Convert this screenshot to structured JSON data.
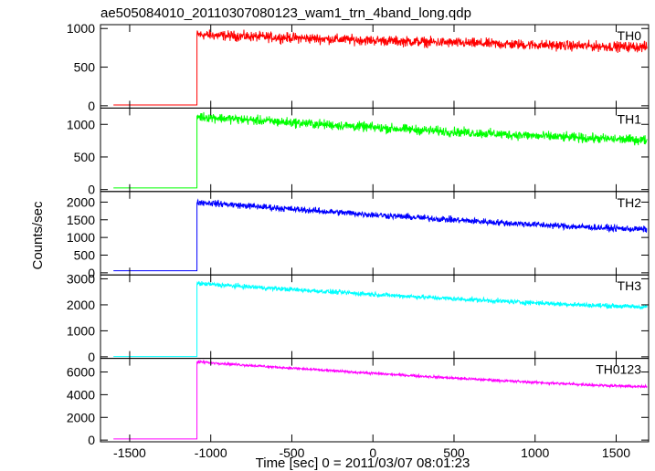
{
  "title": "ae505084010_20110307080123_wam1_trn_4band_long.qdp",
  "xlabel": "Time [sec] 0 = 2011/03/07 08:01:23",
  "ylabel": "Counts/sec",
  "x_ticks": [
    -1500,
    -1000,
    -500,
    0,
    500,
    1000,
    1500
  ],
  "chart_data": [
    {
      "type": "line",
      "series": [
        {
          "name": "TH0",
          "color": "#ff0000",
          "pre_level": 10,
          "pre_x_range": [
            -1600,
            -1090
          ],
          "post_start": 920,
          "post_end": 760,
          "noise": 40,
          "step_x": -1085
        }
      ],
      "xlim": [
        -1680,
        1700
      ],
      "ylim": [
        -30,
        1050
      ],
      "y_ticks": [
        0,
        500,
        1000
      ],
      "grid": false
    },
    {
      "type": "line",
      "series": [
        {
          "name": "TH1",
          "color": "#00ff00",
          "pre_level": 25,
          "pre_x_range": [
            -1600,
            -1090
          ],
          "post_start": 1120,
          "post_end": 760,
          "noise": 45,
          "step_x": -1085
        }
      ],
      "xlim": [
        -1680,
        1700
      ],
      "ylim": [
        -30,
        1250
      ],
      "y_ticks": [
        0,
        500,
        1000
      ],
      "grid": false
    },
    {
      "type": "line",
      "series": [
        {
          "name": "TH2",
          "color": "#0000ff",
          "pre_level": 60,
          "pre_x_range": [
            -1600,
            -1090
          ],
          "post_start": 2000,
          "post_end": 1230,
          "noise": 55,
          "step_x": -1085
        }
      ],
      "xlim": [
        -1680,
        1700
      ],
      "ylim": [
        -60,
        2300
      ],
      "y_ticks": [
        0,
        500,
        1000,
        1500,
        2000
      ],
      "grid": false
    },
    {
      "type": "line",
      "series": [
        {
          "name": "TH3",
          "color": "#00ffff",
          "pre_level": 10,
          "pre_x_range": [
            -1600,
            -1090
          ],
          "post_start": 2820,
          "post_end": 1920,
          "noise": 55,
          "step_x": -1085
        }
      ],
      "xlim": [
        -1680,
        1700
      ],
      "ylim": [
        -60,
        3150
      ],
      "y_ticks": [
        0,
        1000,
        2000,
        3000
      ],
      "grid": false
    },
    {
      "type": "line",
      "series": [
        {
          "name": "TH0123",
          "color": "#ff00ff",
          "pre_level": 100,
          "pre_x_range": [
            -1600,
            -1090
          ],
          "post_start": 6900,
          "post_end": 4700,
          "noise": 70,
          "step_x": -1085
        }
      ],
      "xlim": [
        -1680,
        1700
      ],
      "ylim": [
        -150,
        7200
      ],
      "y_ticks": [
        0,
        2000,
        4000,
        6000
      ],
      "grid": false
    }
  ]
}
